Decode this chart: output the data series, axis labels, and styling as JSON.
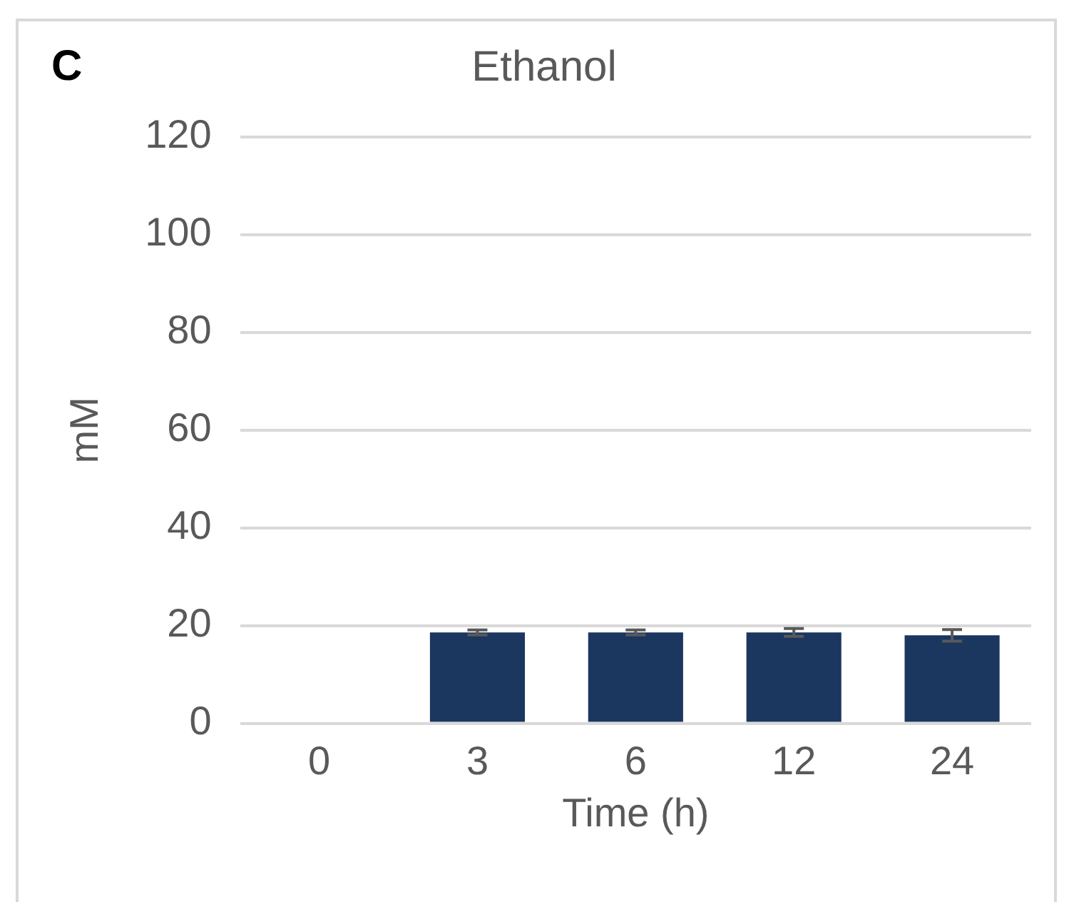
{
  "chart_data": {
    "type": "bar",
    "title": "Ethanol",
    "xlabel": "Time (h)",
    "ylabel": "mM",
    "annotations": [
      "C"
    ],
    "categories": [
      "0",
      "3",
      "6",
      "12",
      "24"
    ],
    "values": [
      0,
      18.6,
      18.6,
      18.6,
      18.0
    ],
    "errors": [
      null,
      0.5,
      0.5,
      0.8,
      1.2
    ],
    "color": "#1b365f",
    "ylim": [
      0,
      120
    ],
    "yticks": [
      0,
      20,
      40,
      60,
      80,
      100,
      120
    ],
    "grid": "y",
    "legend": false
  }
}
